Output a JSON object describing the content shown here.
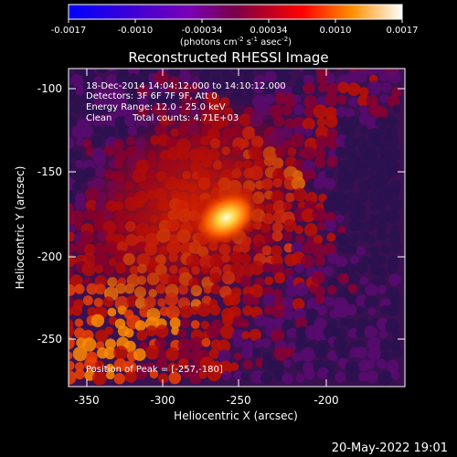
{
  "colorbar": {
    "ticks": [
      "-0.0017",
      "-0.0010",
      "-0.00034",
      "0.00034",
      "0.0010",
      "0.0017"
    ],
    "units_parts": [
      "(photons cm",
      "-2",
      " s",
      "-1",
      " asec",
      "-2",
      ")"
    ]
  },
  "title": "Reconstructed RHESSI Image",
  "info": {
    "time_range": "18-Dec-2014 14:04:12.000 to 14:10:12.000",
    "detectors": "Detectors: 3F 6F 7F 9F, Att 0",
    "energy_range": "Energy Range: 12.0 - 25.0 keV",
    "clean_label": "Clean",
    "total_counts": "Total counts: 4.71E+03",
    "peak_position": "Position of Peak = [-257,-180]"
  },
  "axes": {
    "x_label": "Heliocentric X (arcsec)",
    "y_label": "Heliocentric Y (arcsec)",
    "x_ticks": [
      -350,
      -300,
      -250,
      -200
    ],
    "y_ticks": [
      -100,
      -150,
      -200,
      -250
    ]
  },
  "timestamp": "20-May-2022 19:01",
  "colors": {
    "colorbar_stops": [
      "#0000ff",
      "#3a00d8",
      "#7a00b8",
      "#7a0048",
      "#ff0000",
      "#ff9000",
      "#ffffff"
    ],
    "image_background": "#3a1050",
    "peak_color": "#ffffcc"
  }
}
